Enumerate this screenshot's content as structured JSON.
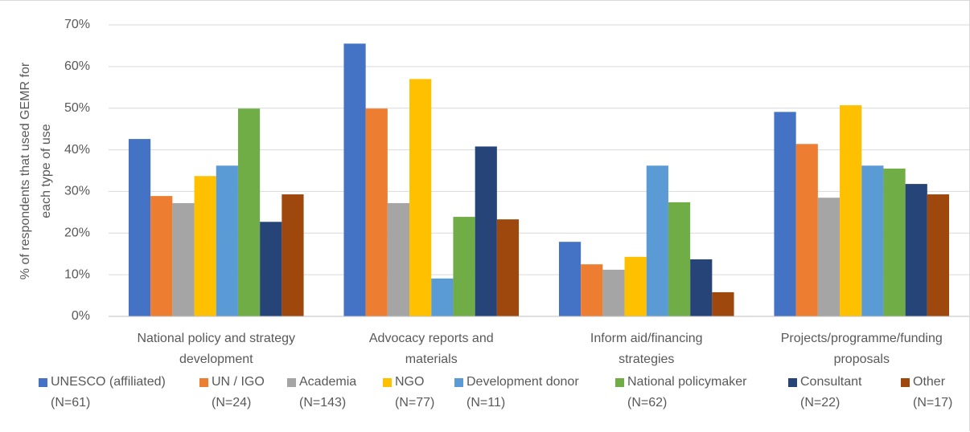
{
  "chart_data": {
    "type": "bar",
    "y_label": "% of respondents that used GEMR for\neach type of use",
    "categories": [
      "National policy and strategy\ndevelopment",
      "Advocacy reports and\nmaterials",
      "Inform aid/financing\nstrategies",
      "Projects/programme/funding\nproposals"
    ],
    "series": [
      {
        "name": "UNESCO (affiliated)\n(N=61)",
        "color": "#4472c4",
        "values": [
          42.6,
          65.5,
          17.9,
          49.1
        ]
      },
      {
        "name": "UN / IGO\n(N=24)",
        "color": "#ed7d31",
        "values": [
          28.9,
          49.9,
          12.5,
          41.4
        ]
      },
      {
        "name": "Academia\n(N=143)",
        "color": "#a5a5a5",
        "values": [
          27.2,
          27.2,
          11.2,
          28.5
        ]
      },
      {
        "name": "NGO\n(N=77)",
        "color": "#ffc000",
        "values": [
          33.7,
          57.0,
          14.3,
          50.7
        ]
      },
      {
        "name": "Development donor\n(N=11)",
        "color": "#5b9bd5",
        "values": [
          36.2,
          9.1,
          36.2,
          36.2
        ]
      },
      {
        "name": "National policymaker\n(N=62)",
        "color": "#70ad47",
        "values": [
          49.9,
          23.9,
          27.4,
          35.5
        ]
      },
      {
        "name": "Consultant\n(N=22)",
        "color": "#264478",
        "values": [
          22.7,
          40.8,
          13.7,
          31.8
        ]
      },
      {
        "name": "Other\n(N=17)",
        "color": "#9e480e",
        "values": [
          29.3,
          23.3,
          5.8,
          29.3
        ]
      }
    ],
    "ylim": [
      0,
      70
    ],
    "yticks": [
      {
        "value": 0,
        "label": "0%"
      },
      {
        "value": 10,
        "label": "10%"
      },
      {
        "value": 20,
        "label": "20%"
      },
      {
        "value": 30,
        "label": "30%"
      },
      {
        "value": 40,
        "label": "40%"
      },
      {
        "value": 50,
        "label": "50%"
      },
      {
        "value": 60,
        "label": "60%"
      },
      {
        "value": 70,
        "label": "70%"
      }
    ],
    "grid": true,
    "legend": "bottom"
  }
}
